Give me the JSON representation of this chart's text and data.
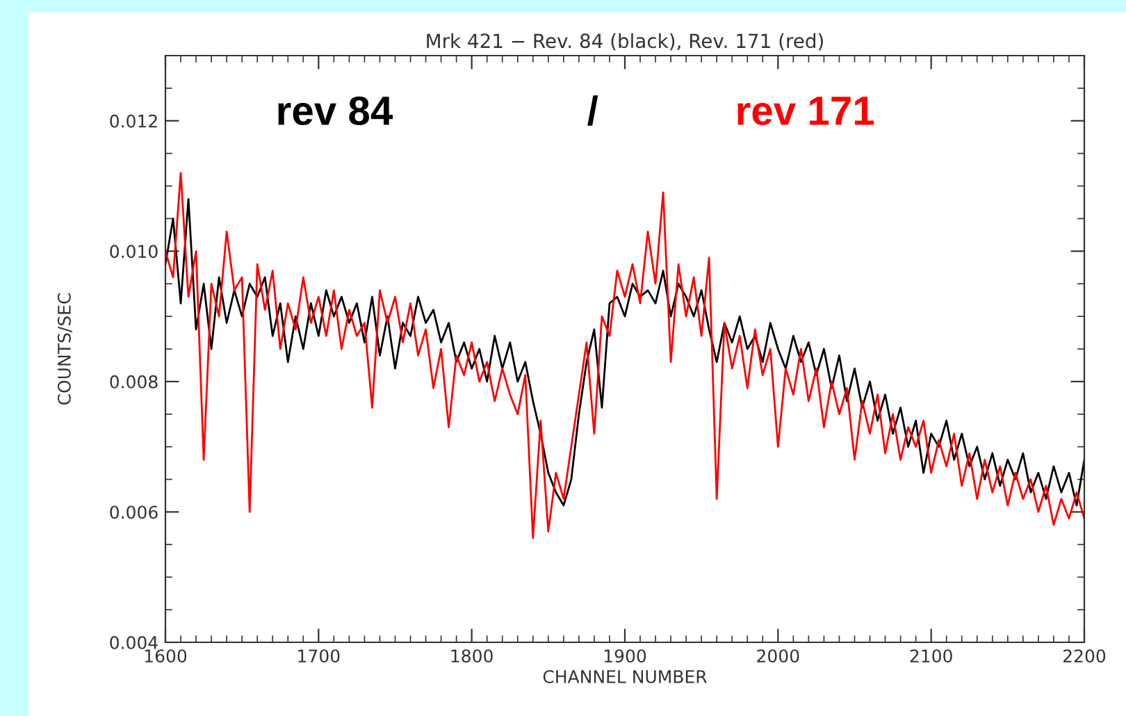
{
  "chart_data": {
    "type": "line",
    "title": "Mrk 421 − Rev. 84 (black), Rev. 171 (red)",
    "xlabel": "CHANNEL NUMBER",
    "ylabel": "COUNTS/SEC",
    "x": [
      1600,
      1605,
      1610,
      1615,
      1620,
      1625,
      1630,
      1635,
      1640,
      1645,
      1650,
      1655,
      1660,
      1665,
      1670,
      1675,
      1680,
      1685,
      1690,
      1695,
      1700,
      1705,
      1710,
      1715,
      1720,
      1725,
      1730,
      1735,
      1740,
      1745,
      1750,
      1755,
      1760,
      1765,
      1770,
      1775,
      1780,
      1785,
      1790,
      1795,
      1800,
      1805,
      1810,
      1815,
      1820,
      1825,
      1830,
      1835,
      1840,
      1845,
      1850,
      1855,
      1860,
      1865,
      1870,
      1875,
      1880,
      1885,
      1890,
      1895,
      1900,
      1905,
      1910,
      1915,
      1920,
      1925,
      1930,
      1935,
      1940,
      1945,
      1950,
      1955,
      1960,
      1965,
      1970,
      1975,
      1980,
      1985,
      1990,
      1995,
      2000,
      2005,
      2010,
      2015,
      2020,
      2025,
      2030,
      2035,
      2040,
      2045,
      2050,
      2055,
      2060,
      2065,
      2070,
      2075,
      2080,
      2085,
      2090,
      2095,
      2100,
      2105,
      2110,
      2115,
      2120,
      2125,
      2130,
      2135,
      2140,
      2145,
      2150,
      2155,
      2160,
      2165,
      2170,
      2175,
      2180,
      2185,
      2190,
      2195,
      2200
    ],
    "series": [
      {
        "name": "rev 84",
        "color": "#000000",
        "values": [
          0.0098,
          0.0105,
          0.0092,
          0.0108,
          0.0088,
          0.0095,
          0.0085,
          0.0096,
          0.0089,
          0.0094,
          0.009,
          0.0095,
          0.0093,
          0.0096,
          0.0087,
          0.0092,
          0.0083,
          0.009,
          0.0085,
          0.0092,
          0.0087,
          0.0094,
          0.009,
          0.0093,
          0.0089,
          0.0092,
          0.0086,
          0.0093,
          0.0084,
          0.009,
          0.0082,
          0.0089,
          0.0087,
          0.0093,
          0.0089,
          0.0091,
          0.0086,
          0.0089,
          0.0083,
          0.0086,
          0.0082,
          0.0085,
          0.008,
          0.0087,
          0.0082,
          0.0086,
          0.008,
          0.0083,
          0.0077,
          0.0072,
          0.0066,
          0.0063,
          0.0061,
          0.0065,
          0.0075,
          0.0083,
          0.0088,
          0.0076,
          0.0092,
          0.0093,
          0.009,
          0.0095,
          0.0093,
          0.0094,
          0.0092,
          0.0097,
          0.009,
          0.0095,
          0.0093,
          0.009,
          0.0094,
          0.0088,
          0.0083,
          0.0089,
          0.0086,
          0.009,
          0.0085,
          0.0087,
          0.0083,
          0.0089,
          0.0085,
          0.0082,
          0.0087,
          0.0083,
          0.0086,
          0.0081,
          0.0085,
          0.0079,
          0.0084,
          0.0077,
          0.0082,
          0.0076,
          0.008,
          0.0074,
          0.0078,
          0.0072,
          0.0076,
          0.007,
          0.0074,
          0.0066,
          0.0072,
          0.007,
          0.0074,
          0.0068,
          0.0072,
          0.0067,
          0.007,
          0.0065,
          0.0069,
          0.0064,
          0.0068,
          0.0065,
          0.0069,
          0.0063,
          0.0066,
          0.0062,
          0.0067,
          0.0063,
          0.0066,
          0.0061,
          0.0068
        ]
      },
      {
        "name": "rev 171",
        "color": "#ff0000",
        "values": [
          0.01,
          0.0096,
          0.0112,
          0.0093,
          0.01,
          0.0068,
          0.0095,
          0.009,
          0.0103,
          0.0094,
          0.0096,
          0.006,
          0.0098,
          0.0091,
          0.0097,
          0.0085,
          0.0092,
          0.0088,
          0.0096,
          0.0089,
          0.0093,
          0.0087,
          0.0094,
          0.0085,
          0.0091,
          0.0087,
          0.0089,
          0.0076,
          0.0094,
          0.0089,
          0.0093,
          0.0086,
          0.0092,
          0.0084,
          0.0088,
          0.0079,
          0.0085,
          0.0073,
          0.0084,
          0.0081,
          0.0086,
          0.008,
          0.0083,
          0.0077,
          0.0082,
          0.0078,
          0.0075,
          0.0081,
          0.0056,
          0.0074,
          0.0057,
          0.0066,
          0.0062,
          0.007,
          0.0078,
          0.0086,
          0.0072,
          0.009,
          0.0087,
          0.0097,
          0.0093,
          0.0098,
          0.0092,
          0.0103,
          0.0095,
          0.0109,
          0.0083,
          0.0098,
          0.009,
          0.0096,
          0.0087,
          0.0099,
          0.0062,
          0.0089,
          0.0082,
          0.0087,
          0.0079,
          0.0088,
          0.0081,
          0.0085,
          0.007,
          0.0082,
          0.0078,
          0.0085,
          0.0077,
          0.0082,
          0.0073,
          0.008,
          0.0075,
          0.0079,
          0.0068,
          0.0077,
          0.0072,
          0.0078,
          0.0069,
          0.0075,
          0.0068,
          0.0073,
          0.007,
          0.0074,
          0.0066,
          0.0071,
          0.0067,
          0.0072,
          0.0064,
          0.0069,
          0.0062,
          0.0068,
          0.0063,
          0.0067,
          0.0061,
          0.0066,
          0.0062,
          0.0065,
          0.006,
          0.0064,
          0.0058,
          0.0062,
          0.0059,
          0.0063,
          0.0059
        ]
      }
    ],
    "annotations": [
      "/"
    ],
    "xlim": [
      1600,
      2200
    ],
    "xticks": [
      1600,
      1700,
      1800,
      1900,
      2000,
      2100,
      2200
    ],
    "ylim": [
      0.004,
      0.013
    ],
    "yticks": [
      0.004,
      0.006,
      0.008,
      {
        "value": 0.01,
        "label": "0.010"
      },
      0.012
    ],
    "grid": false,
    "legend": false,
    "marker": "none",
    "line_style": "solid"
  }
}
